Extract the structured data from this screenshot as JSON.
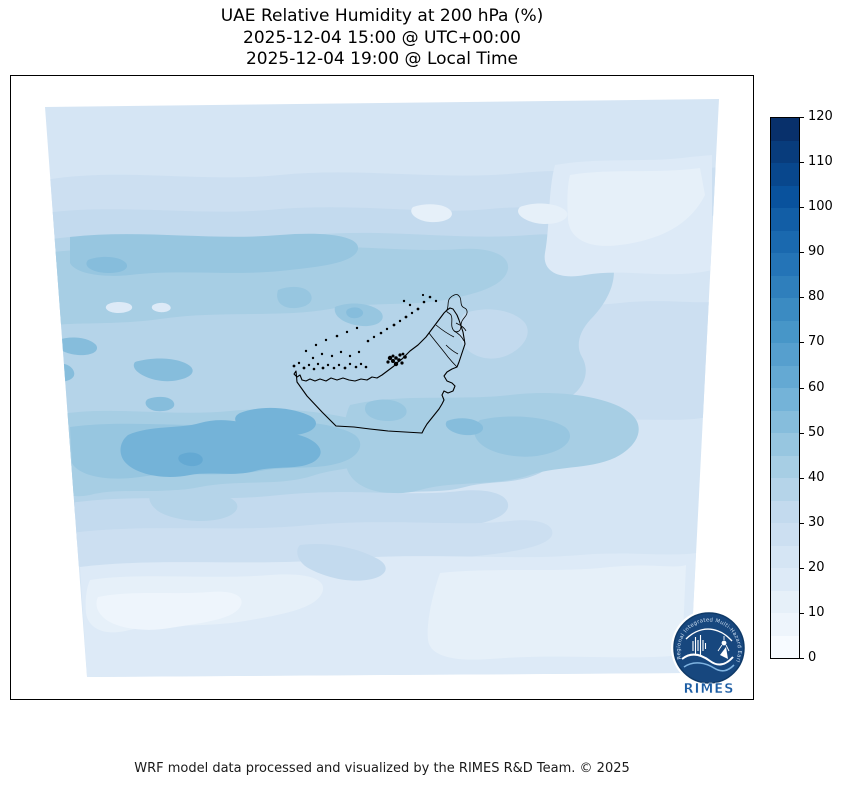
{
  "title": {
    "line1": "UAE Relative Humidity at 200 hPa (%)",
    "line2": "2025-12-04 15:00 @ UTC+00:00",
    "line3": "2025-12-04 19:00 @ Local Time"
  },
  "footer": "WRF model data processed and visualized by the RIMES R&D Team. © 2025",
  "colorbar": {
    "min": 0,
    "max": 120,
    "tick_interval": 10,
    "band_interval": 5,
    "ticks": [
      0,
      10,
      20,
      30,
      40,
      50,
      60,
      70,
      80,
      90,
      100,
      110,
      120
    ],
    "segment_colors": [
      "#F7FBFF",
      "#EEF5FC",
      "#E6F0F9",
      "#DDEAF7",
      "#D5E5F4",
      "#CCDFF1",
      "#C3DAEE",
      "#B5D4E9",
      "#A7CEE4",
      "#97C6E0",
      "#86BDDC",
      "#74B3D8",
      "#64A9D3",
      "#569FCE",
      "#4796C8",
      "#3B8BC2",
      "#2F7FBC",
      "#2474B7",
      "#1A69AF",
      "#125EA6",
      "#09529D",
      "#08478D",
      "#083C7C",
      "#08306B"
    ]
  },
  "logo": {
    "arc_text": "Regional Integrated Multi-Hazard Early Warning System",
    "label": "RIMES",
    "navy": "#17477E",
    "blue": "#1B5CA3"
  },
  "chart_data": {
    "type": "heatmap",
    "title": "UAE Relative Humidity at 200 hPa (%)",
    "subtitle_utc": "2025-12-04 15:00 @ UTC+00:00",
    "subtitle_local": "2025-12-04 19:00 @ Local Time",
    "variable": "Relative Humidity",
    "pressure_level_hPa": 200,
    "units": "%",
    "region": "UAE (WRF model domain, filled contour map)",
    "palette_name": "Blues",
    "legend_position": "right colorbar",
    "colorbar_range": [
      0,
      120
    ],
    "colorbar_tick_interval": 10,
    "contour_band_interval": 5,
    "displayed_value_range": [
      5,
      65
    ],
    "overlays": [
      "UAE coastline and administrative boundaries",
      "coastal island markers",
      "RIMES logo bottom-right"
    ],
    "estimated_grid": {
      "note": "Coarse relative-humidity (%) estimates read from contour shading; 10 columns west-to-east, 8 rows north-to-south",
      "values": [
        [
          22,
          22,
          22,
          25,
          25,
          22,
          18,
          20,
          22,
          25
        ],
        [
          28,
          30,
          28,
          25,
          22,
          12,
          10,
          15,
          22,
          22
        ],
        [
          40,
          42,
          45,
          40,
          35,
          30,
          25,
          28,
          30,
          28
        ],
        [
          45,
          42,
          40,
          38,
          45,
          40,
          35,
          30,
          28,
          30
        ],
        [
          50,
          48,
          45,
          40,
          38,
          42,
          45,
          38,
          30,
          28
        ],
        [
          35,
          58,
          55,
          45,
          50,
          48,
          42,
          35,
          28,
          25
        ],
        [
          22,
          30,
          38,
          42,
          35,
          32,
          28,
          25,
          22,
          22
        ],
        [
          8,
          10,
          15,
          22,
          28,
          25,
          22,
          20,
          18,
          18
        ]
      ]
    }
  }
}
